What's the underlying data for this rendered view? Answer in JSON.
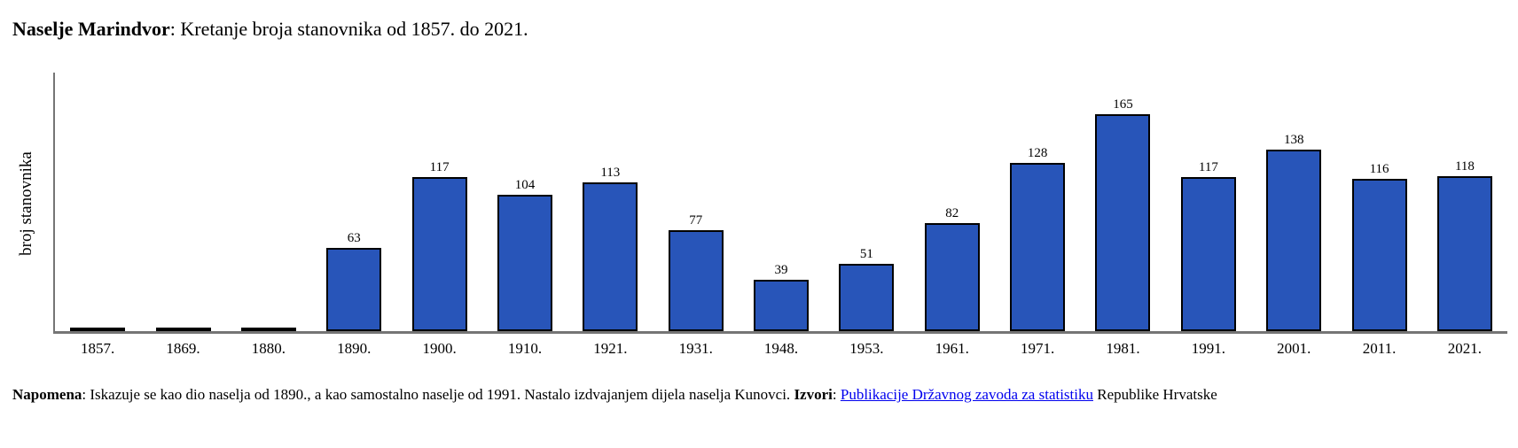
{
  "page": {
    "title_bold": "Naselje Marindvor",
    "title_rest": ": Kretanje broja stanovnika od 1857. do 2021."
  },
  "chart_data": {
    "type": "bar",
    "title": "Naselje Marindvor: Kretanje broja stanovnika od 1857. do 2021.",
    "xlabel": "",
    "ylabel": "broj stanovnika",
    "categories": [
      "1857.",
      "1869.",
      "1880.",
      "1890.",
      "1900.",
      "1910.",
      "1921.",
      "1931.",
      "1948.",
      "1953.",
      "1961.",
      "1971.",
      "1981.",
      "1991.",
      "2001.",
      "2011.",
      "2021."
    ],
    "values": [
      0,
      0,
      0,
      63,
      117,
      104,
      113,
      77,
      39,
      51,
      82,
      128,
      165,
      117,
      138,
      116,
      118
    ],
    "value_labels": [
      "",
      "",
      "",
      "63",
      "117",
      "104",
      "113",
      "77",
      "39",
      "51",
      "82",
      "128",
      "165",
      "117",
      "138",
      "116",
      "118"
    ],
    "ylim": [
      0,
      180
    ],
    "grid": false,
    "legend": false,
    "bar_color": "#2855b9",
    "bar_border_color": "#000000",
    "axis_color": "#757575"
  },
  "footer": {
    "napomena_label": "Napomena",
    "napomena_text": ": Iskazuje se kao dio naselja od 1890., a kao samostalno naselje od 1991. Nastalo izdvajanjem dijela naselja Kunovci. ",
    "izvori_label": "Izvori",
    "izvori_sep": ": ",
    "source_link": "Publikacije Državnog zavoda za statistiku",
    "source_suffix": " Republike Hrvatske"
  }
}
